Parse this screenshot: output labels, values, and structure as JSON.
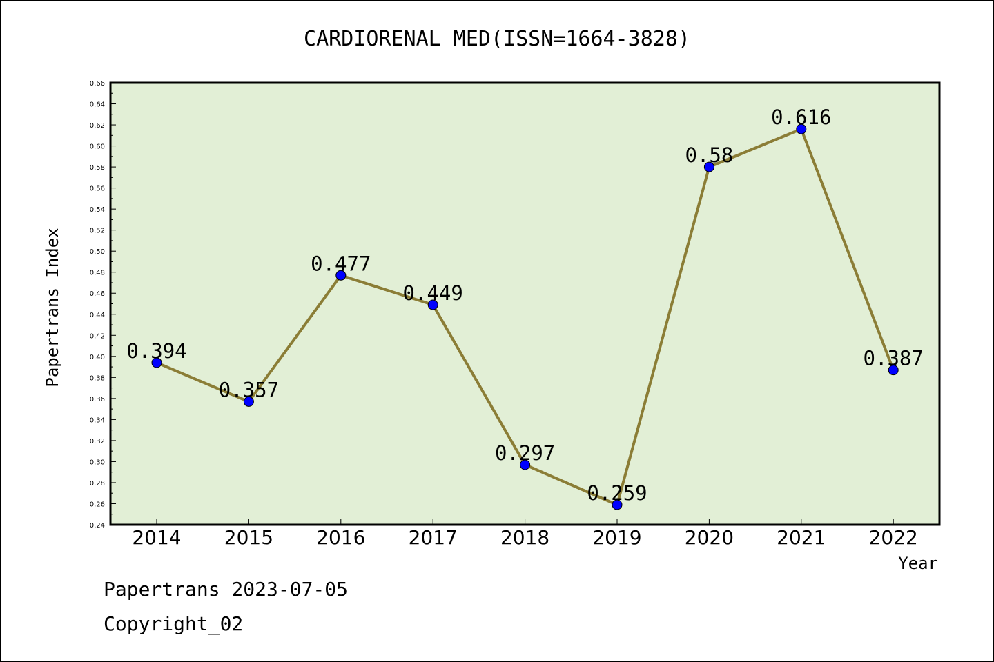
{
  "chart_data": {
    "type": "line",
    "title": "CARDIORENAL MED(ISSN=1664-3828)",
    "xlabel": "Year",
    "ylabel": "Papertrans Index",
    "categories": [
      "2014",
      "2015",
      "2016",
      "2017",
      "2018",
      "2019",
      "2020",
      "2021",
      "2022"
    ],
    "series": [
      {
        "values": [
          0.394,
          0.357,
          0.477,
          0.449,
          0.297,
          0.259,
          0.58,
          0.616,
          0.387
        ]
      }
    ],
    "data_labels": [
      "0.394",
      "0.357",
      "0.477",
      "0.449",
      "0.297",
      "0.259",
      "0.58",
      "0.616",
      "0.387"
    ],
    "ylim": [
      0.24,
      0.66
    ],
    "yticks": [
      "0.24",
      "0.26",
      "0.28",
      "0.30",
      "0.32",
      "0.34",
      "0.36",
      "0.38",
      "0.40",
      "0.42",
      "0.44",
      "0.46",
      "0.48",
      "0.50",
      "0.52",
      "0.54",
      "0.56",
      "0.58",
      "0.60",
      "0.62",
      "0.64",
      "0.66"
    ],
    "grid": false,
    "colors": {
      "plot_background": "#e2efd6",
      "line": "#8b7d36",
      "marker": "#0000ff"
    }
  },
  "footer": {
    "line1": "Papertrans 2023-07-05",
    "line2": "Copyright_02"
  }
}
